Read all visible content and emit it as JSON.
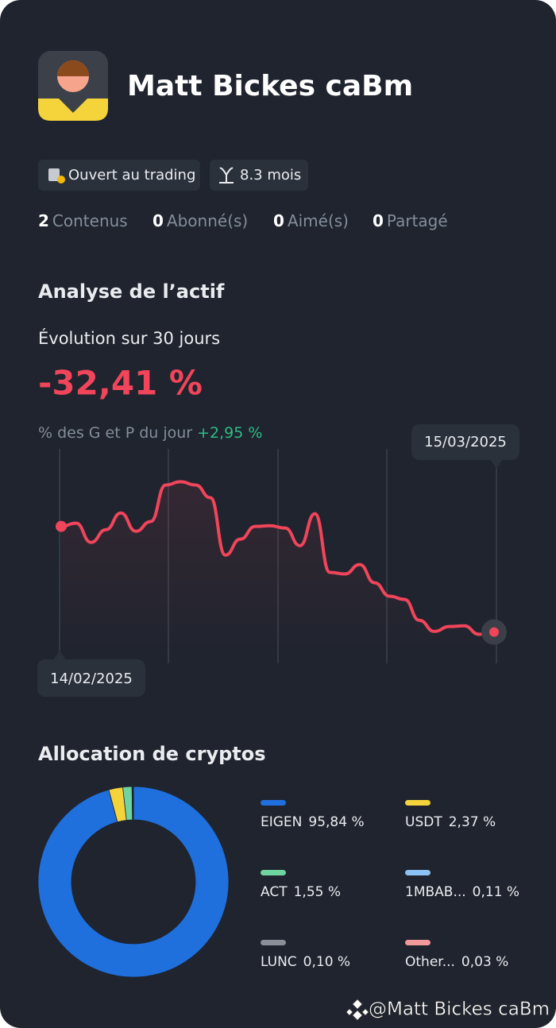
{
  "profile": {
    "name": "Matt Bickes caBm",
    "badges": [
      "Ouvert au trading",
      "8.3 mois"
    ]
  },
  "stats": [
    {
      "count": 2,
      "label": "Contenus"
    },
    {
      "count": 0,
      "label": "Abonné(s)"
    },
    {
      "count": 0,
      "label": "Aimé(s)"
    },
    {
      "count": 0,
      "label": "Partagé"
    }
  ],
  "analysis": {
    "title": "Analyse de l’actif",
    "period_label": "Évolution sur 30 jours",
    "evolution": {
      "value": -32.41,
      "label": "-32,41 %"
    },
    "daily_label": "% des G et P du jour",
    "daily": {
      "value": 2.95,
      "label": "+2,95 %"
    }
  },
  "chart_data": [
    {
      "type": "line",
      "x": [
        "14/02/2025",
        null,
        null,
        null,
        null,
        null,
        null,
        null,
        null,
        null,
        null,
        null,
        null,
        null,
        null,
        null,
        null,
        null,
        null,
        null,
        null,
        null,
        null,
        null,
        null,
        null,
        null,
        null,
        null,
        "15/03/2025"
      ],
      "values": [
        0,
        1.0,
        -4.9,
        -1.0,
        4.1,
        -1.5,
        1.5,
        12.7,
        13.7,
        12.7,
        8.8,
        -8.8,
        -3.9,
        0,
        0.2,
        -0.5,
        -5.9,
        3.9,
        -14.1,
        -14.6,
        -11.7,
        -17.3,
        -21.4,
        -22.4,
        -28.8,
        -32.2,
        -30.7,
        -30.5,
        -33.1,
        -32.41
      ],
      "color": "#f0455a",
      "ylim": [
        -42,
        25
      ]
    },
    {
      "type": "pie",
      "title": "Allocation de cryptos",
      "categories": [
        "EIGEN",
        "USDT",
        "ACT",
        "1MBAB...",
        "LUNC",
        "Other..."
      ],
      "values": [
        95.84,
        2.37,
        1.55,
        0.11,
        0.1,
        0.03
      ],
      "value_labels": [
        "95,84 %",
        "2,37 %",
        "1,55 %",
        "0,11 %",
        "0,10 %",
        "0,03 %"
      ],
      "colors": [
        "#1f6fdc",
        "#f5d33a",
        "#6fd4a0",
        "#8ac2f5",
        "#8a8f98",
        "#f29a9a"
      ]
    }
  ],
  "watermark": "@Matt Bickes caBm"
}
